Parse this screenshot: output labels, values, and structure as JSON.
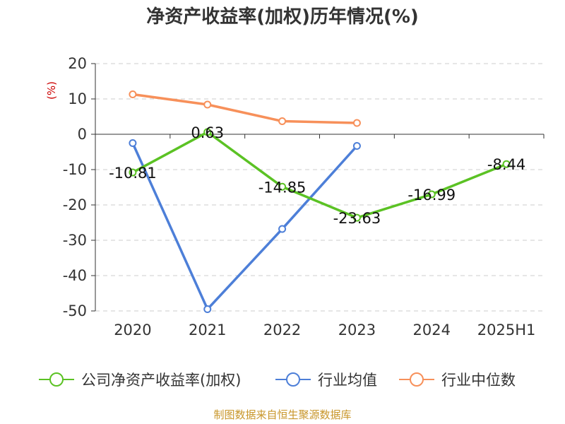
{
  "chart_data": {
    "type": "line",
    "title": "净资产收益率(加权)历年情况(%)",
    "unit_label": "(%)",
    "categories": [
      "2020",
      "2021",
      "2022",
      "2023",
      "2024",
      "2025H1"
    ],
    "ylim": [
      -50,
      20
    ],
    "yticks": [
      20,
      10,
      0,
      -10,
      -20,
      -30,
      -40,
      -50
    ],
    "grid": true,
    "legend_position": "bottom",
    "series": [
      {
        "name": "公司净资产收益率(加权)",
        "color": "#5bc224",
        "values": [
          -10.81,
          0.63,
          -14.85,
          -23.63,
          -16.99,
          -8.44
        ],
        "labels": [
          "-10.81",
          "0.63",
          "-14.85",
          "-23.63",
          "-16.99",
          "-8.44"
        ]
      },
      {
        "name": "行业均值",
        "color": "#4d7fd8",
        "values": [
          -2.5,
          -49.5,
          -26.8,
          -3.3,
          null,
          null
        ]
      },
      {
        "name": "行业中位数",
        "color": "#f7905a",
        "values": [
          11.3,
          8.4,
          3.7,
          3.2,
          null,
          null
        ]
      }
    ]
  },
  "source_note": "制图数据来自恒生聚源数据库"
}
